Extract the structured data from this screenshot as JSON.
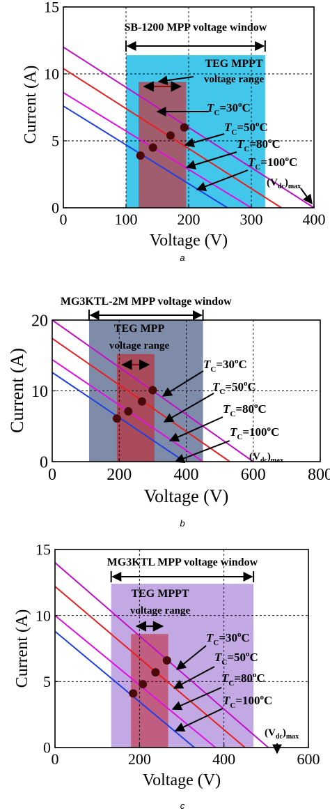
{
  "chart_data": [
    {
      "type": "line",
      "panel_label": "a",
      "xlabel": "Voltage (V)",
      "ylabel": "Current (A)",
      "xlim": [
        0,
        400
      ],
      "ylim": [
        0,
        15
      ],
      "x_ticks": [
        "0",
        "100",
        "200",
        "300",
        "400"
      ],
      "y_ticks": [
        "0",
        "5",
        "10",
        "15"
      ],
      "grid": "dashed",
      "window": {
        "label": "SB-1200 MPP voltage window",
        "x_range": [
          100,
          322
        ],
        "y_top": 11.4,
        "color": "#2ec0e8"
      },
      "mppt": {
        "label_line1": "TEG MPPT",
        "label_line2": "voltage range",
        "x_range": [
          120,
          196
        ],
        "y_top": 9.4,
        "color": "#b04a57"
      },
      "series": [
        {
          "name": "T_C=30°C",
          "color": "#c010c8",
          "x": [
            0,
            400
          ],
          "y": [
            12.0,
            0
          ]
        },
        {
          "name": "T_C=50°C",
          "color": "#e62020",
          "x": [
            0,
            348
          ],
          "y": [
            10.4,
            0
          ]
        },
        {
          "name": "T_C=80°C",
          "color": "#e010e0",
          "x": [
            0,
            300
          ],
          "y": [
            8.6,
            0
          ]
        },
        {
          "name": "T_C=100°C",
          "color": "#2040e0",
          "x": [
            0,
            262
          ],
          "y": [
            7.6,
            0
          ]
        }
      ],
      "mpp_points": [
        {
          "x": 193,
          "y": 6.0
        },
        {
          "x": 171,
          "y": 5.4
        },
        {
          "x": 143,
          "y": 4.5
        },
        {
          "x": 123,
          "y": 3.9
        }
      ],
      "annotations": [
        {
          "main": "T",
          "sub": "C",
          "rest": "=30",
          "sup": "o",
          "tail": "C"
        },
        {
          "main": "T",
          "sub": "C",
          "rest": "=50",
          "sup": "o",
          "tail": "C"
        },
        {
          "main": "T",
          "sub": "C",
          "rest": "=80",
          "sup": "o",
          "tail": "C"
        },
        {
          "main": "T",
          "sub": "C",
          "rest": "=100",
          "sup": "o",
          "tail": "C"
        }
      ],
      "vdc_label": {
        "open": "(V",
        "sub": "dc",
        "close": ")",
        "subtail": "max"
      }
    },
    {
      "type": "line",
      "panel_label": "b",
      "xlabel": "Voltage (V)",
      "ylabel": "Current (A)",
      "xlim": [
        0,
        800
      ],
      "ylim": [
        0,
        20
      ],
      "x_ticks": [
        "0",
        "200",
        "400",
        "600",
        "800"
      ],
      "y_ticks": [
        "0",
        "10",
        "20"
      ],
      "grid": "dashed",
      "window": {
        "label": "MG3KTL-2M MPP voltage window",
        "x_range": [
          110,
          450
        ],
        "y_top": 20.0,
        "color": "#7080a0"
      },
      "mppt": {
        "label_line1": "TEG MPP",
        "label_line2": "voltage range",
        "x_range": [
          193,
          305
        ],
        "y_top": 15.2,
        "color": "#b0404c"
      },
      "series": [
        {
          "name": "T_C=30°C",
          "color": "#c010c8",
          "x": [
            0,
            600
          ],
          "y": [
            20.0,
            0
          ]
        },
        {
          "name": "T_C=50°C",
          "color": "#e62020",
          "x": [
            0,
            530
          ],
          "y": [
            17.4,
            0
          ]
        },
        {
          "name": "T_C=80°C",
          "color": "#e010e0",
          "x": [
            0,
            450
          ],
          "y": [
            14.4,
            0
          ]
        },
        {
          "name": "T_C=100°C",
          "color": "#2040e0",
          "x": [
            0,
            395
          ],
          "y": [
            12.6,
            0
          ]
        }
      ],
      "mpp_points": [
        {
          "x": 300,
          "y": 10.1
        },
        {
          "x": 268,
          "y": 8.5
        },
        {
          "x": 227,
          "y": 7.1
        },
        {
          "x": 193,
          "y": 6.1
        }
      ],
      "annotations": [
        {
          "main": "T",
          "sub": "C",
          "rest": "=30",
          "sup": "o",
          "tail": "C"
        },
        {
          "main": "T",
          "sub": "C",
          "rest": "=50",
          "sup": "o",
          "tail": "C"
        },
        {
          "main": "T",
          "sub": "C",
          "rest": "=80",
          "sup": "o",
          "tail": "C"
        },
        {
          "main": "T",
          "sub": "C",
          "rest": "=100",
          "sup": "o",
          "tail": "C"
        }
      ],
      "vdc_label": {
        "open": "(V",
        "sub": "dc",
        "close": ")",
        "subtail": "max"
      }
    },
    {
      "type": "line",
      "panel_label": "c",
      "xlabel": "Voltage (V)",
      "ylabel": "Current (A)",
      "xlim": [
        0,
        600
      ],
      "ylim": [
        0,
        15
      ],
      "x_ticks": [
        "0",
        "200",
        "400",
        "600"
      ],
      "y_ticks": [
        "0",
        "5",
        "10",
        "15"
      ],
      "grid": "dashed",
      "window": {
        "label": "MG3KTL MPP voltage window",
        "x_range": [
          133,
          470
        ],
        "y_top": 12.4,
        "color": "#bca0e0"
      },
      "mppt": {
        "label_line1": "TEG MPPT",
        "label_line2": "voltage range",
        "x_range": [
          180,
          268
        ],
        "y_top": 8.6,
        "color": "#c05070"
      },
      "series": [
        {
          "name": "T_C=30°C",
          "color": "#c010c8",
          "x": [
            0,
            505
          ],
          "y": [
            14.0,
            0
          ]
        },
        {
          "name": "T_C=50°C",
          "color": "#e62020",
          "x": [
            0,
            450
          ],
          "y": [
            12.2,
            0
          ]
        },
        {
          "name": "T_C=80°C",
          "color": "#e010e0",
          "x": [
            0,
            380
          ],
          "y": [
            10.0,
            0
          ]
        },
        {
          "name": "T_C=100°C",
          "color": "#2040e0",
          "x": [
            0,
            330
          ],
          "y": [
            8.8,
            0
          ]
        }
      ],
      "mpp_points": [
        {
          "x": 265,
          "y": 6.6
        },
        {
          "x": 238,
          "y": 5.7
        },
        {
          "x": 208,
          "y": 4.8
        },
        {
          "x": 185,
          "y": 4.1
        }
      ],
      "annotations": [
        {
          "main": "T",
          "sub": "C",
          "rest": "=30",
          "sup": "o",
          "tail": "C"
        },
        {
          "main": "T",
          "sub": "C",
          "rest": "=50",
          "sup": "o",
          "tail": "C"
        },
        {
          "main": "T",
          "sub": "C",
          "rest": "=80",
          "sup": "o",
          "tail": "C"
        },
        {
          "main": "T",
          "sub": "C",
          "rest": "=100",
          "sup": "o",
          "tail": "C"
        }
      ],
      "vdc_label": {
        "open": "(V",
        "sub": "dc",
        "close": ")",
        "subtail": "max"
      }
    }
  ]
}
